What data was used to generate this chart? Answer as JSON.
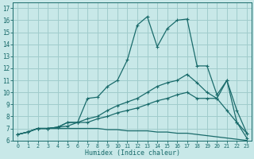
{
  "xlabel": "Humidex (Indice chaleur)",
  "bg_color": "#c8e8e8",
  "grid_color": "#a0cccc",
  "line_color": "#1a6b6b",
  "xlim": [
    -0.5,
    23.5
  ],
  "ylim": [
    6,
    17.5
  ],
  "xticks": [
    0,
    1,
    2,
    3,
    4,
    5,
    6,
    7,
    8,
    9,
    10,
    11,
    12,
    13,
    14,
    15,
    16,
    17,
    18,
    19,
    20,
    21,
    22,
    23
  ],
  "yticks": [
    6,
    7,
    8,
    9,
    10,
    11,
    12,
    13,
    14,
    15,
    16,
    17
  ],
  "line1_y": [
    6.5,
    6.7,
    7.0,
    7.0,
    7.1,
    7.2,
    7.5,
    9.5,
    9.6,
    10.5,
    11.0,
    12.7,
    15.6,
    16.3,
    13.8,
    15.3,
    16.0,
    16.1,
    12.2,
    12.2,
    9.8,
    11.0,
    7.5,
    6.6
  ],
  "line2_y": [
    6.5,
    6.7,
    7.0,
    7.0,
    7.1,
    7.5,
    7.5,
    7.8,
    8.0,
    8.5,
    8.9,
    9.2,
    9.5,
    10.0,
    10.5,
    10.8,
    11.0,
    11.5,
    10.8,
    10.0,
    9.5,
    11.0,
    8.5,
    6.6
  ],
  "line3_y": [
    6.5,
    6.7,
    7.0,
    7.0,
    7.1,
    7.5,
    7.5,
    7.5,
    7.8,
    8.0,
    8.3,
    8.5,
    8.7,
    9.0,
    9.3,
    9.5,
    9.8,
    10.0,
    9.5,
    9.5,
    9.5,
    8.5,
    7.5,
    6.2
  ],
  "line4_y": [
    6.5,
    6.7,
    7.0,
    7.0,
    7.0,
    7.0,
    7.0,
    7.0,
    7.0,
    6.9,
    6.9,
    6.8,
    6.8,
    6.8,
    6.7,
    6.7,
    6.6,
    6.6,
    6.5,
    6.4,
    6.3,
    6.2,
    6.1,
    6.0
  ]
}
